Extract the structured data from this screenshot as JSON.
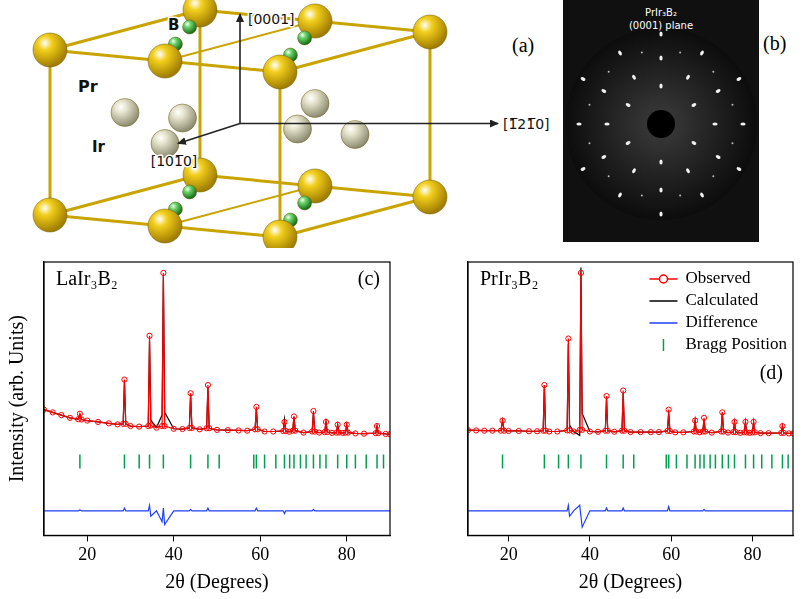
{
  "diagram": {
    "label": "(a)",
    "atoms": {
      "large": "Pr",
      "medium": "Ir",
      "small": "B"
    },
    "directions": {
      "vertical": "[0001]",
      "horizontal": "[1̅21̅0]",
      "depth": "[101̅0]"
    }
  },
  "laue_image": {
    "label": "(b)",
    "lines": [
      "PrIr₃B₂",
      "(0001) plane"
    ]
  },
  "chart_data": [
    {
      "type": "line",
      "title": "LaIr₃B₂",
      "label": "(c)",
      "x_label": "2θ (Degrees)",
      "y_label": "Intensity (arb. Units)",
      "xlim": [
        10,
        90
      ],
      "xticks": [
        20,
        40,
        60,
        80
      ],
      "ylim": [
        0,
        100
      ],
      "grid": false,
      "tick_labels": "x",
      "x": [
        10,
        12,
        14,
        16,
        17.9,
        18.3,
        18.7,
        20,
        22.5,
        25,
        27,
        28.3,
        28.6,
        28.9,
        30,
        32,
        34.1,
        34.4,
        34.7,
        36,
        37.3,
        37.6,
        37.9,
        40,
        42,
        43.6,
        43.9,
        44.2,
        46,
        47.6,
        47.9,
        48.2,
        50,
        52.5,
        55,
        57,
        58.8,
        59.1,
        59.4,
        61,
        63,
        65.3,
        65.6,
        65.9,
        66.7,
        67.5,
        67.8,
        68.1,
        70,
        72.0,
        72.3,
        72.6,
        73.6,
        74.9,
        75.2,
        75.5,
        76.6,
        77.6,
        77.9,
        78.2,
        79.1,
        79.7,
        80.0,
        80.3,
        82,
        84,
        86.7,
        87.0,
        87.3,
        89,
        90
      ],
      "series": [
        {
          "color": "#ff0000",
          "marker": "circle",
          "line_style": "solid",
          "values": [
            46,
            45,
            44,
            43,
            42.5,
            44.5,
            42.4,
            42,
            41.5,
            41,
            40.6,
            40.8,
            57,
            40.8,
            40,
            39.8,
            40,
            73,
            40.2,
            39.4,
            40,
            96,
            40,
            39,
            38.9,
            39.3,
            52,
            39.3,
            38.8,
            39.2,
            55,
            39.2,
            38.6,
            38.5,
            38.4,
            38.3,
            38.8,
            47,
            38.8,
            38,
            38,
            38.2,
            41.5,
            38.2,
            37.9,
            38.3,
            43.5,
            38.3,
            37.6,
            38,
            45.5,
            38,
            37.6,
            37.8,
            41.5,
            37.8,
            37.5,
            37.6,
            40.5,
            37.6,
            37.5,
            37.6,
            40.5,
            37.6,
            37.3,
            37.2,
            37.4,
            40,
            37.4,
            37.1,
            37
          ]
        },
        {
          "color": "#000000",
          "line_style": "solid",
          "values": [
            46,
            45,
            44,
            43,
            42.5,
            44.2,
            42.4,
            42,
            41.5,
            41,
            40.6,
            40.8,
            56,
            40.8,
            40,
            39.8,
            40,
            71,
            42.2,
            39.4,
            44,
            95,
            45,
            39,
            38.9,
            39.3,
            51.5,
            39.3,
            38.8,
            39.2,
            54,
            39.2,
            38.6,
            38.5,
            38.4,
            38.3,
            38.8,
            46,
            38.8,
            38,
            38,
            38.2,
            42.5,
            38.2,
            37.9,
            38.3,
            43.5,
            38.3,
            37.6,
            38,
            45,
            38,
            37.6,
            37.8,
            41.5,
            37.8,
            37.5,
            37.6,
            40.5,
            37.6,
            37.5,
            37.6,
            40.5,
            37.6,
            37.3,
            37.2,
            37.4,
            40,
            37.4,
            37.1,
            37
          ]
        },
        {
          "color": "#1f3fff",
          "line_style": "solid",
          "values": [
            9,
            9,
            9,
            9,
            9,
            9.3,
            9,
            9,
            9,
            9,
            9,
            9,
            10,
            9,
            9,
            9,
            9,
            11,
            7,
            9,
            5,
            10,
            4,
            9,
            9,
            9,
            9.5,
            9,
            9,
            9,
            10,
            9,
            9,
            9,
            9,
            9,
            9,
            10,
            9,
            9,
            9,
            9,
            8,
            9,
            9,
            9,
            9,
            9,
            9,
            9,
            9.5,
            9,
            9,
            9,
            9,
            9,
            9,
            9,
            9,
            9,
            9,
            9,
            9,
            9,
            9,
            9,
            9,
            9,
            9,
            9,
            9
          ]
        },
        {
          "color": "#00a050",
          "type": "scatter",
          "marker": "line",
          "x": [
            18.3,
            28.6,
            32.0,
            34.4,
            37.6,
            43.9,
            47.9,
            50.5,
            58.5,
            59.1,
            61.0,
            63.6,
            65.6,
            66.8,
            67.8,
            69.3,
            70.6,
            72.3,
            73.8,
            75.2,
            77.9,
            80.0,
            82.0,
            84.5,
            87.0,
            88.5
          ],
          "values": [
            27,
            27,
            27,
            27,
            27,
            27,
            27,
            27,
            27,
            27,
            27,
            27,
            27,
            27,
            27,
            27,
            27,
            27,
            27,
            27,
            27,
            27,
            27,
            27,
            27,
            27
          ]
        }
      ]
    },
    {
      "type": "line",
      "title": "PrIr₃B₂",
      "label": "(d)",
      "x_label": "2θ (Degrees)",
      "xlim": [
        10,
        90
      ],
      "xticks": [
        20,
        40,
        60,
        80
      ],
      "ylim": [
        0,
        100
      ],
      "grid": false,
      "tick_labels": "x",
      "legend": "top right",
      "x": [
        10,
        12,
        14,
        16,
        18.1,
        18.5,
        18.9,
        20,
        22.5,
        25,
        27,
        28.5,
        28.8,
        29.1,
        30,
        32,
        34.4,
        34.7,
        35.0,
        36,
        37.5,
        37.8,
        38.1,
        40,
        42,
        43.8,
        44.1,
        44.4,
        46,
        47.9,
        48.2,
        48.5,
        50,
        52.5,
        55,
        57,
        59.1,
        59.4,
        59.7,
        61,
        63,
        65.6,
        65.9,
        66.2,
        67,
        67.8,
        68.1,
        68.4,
        70,
        72.3,
        72.6,
        72.9,
        74,
        75.3,
        75.6,
        75.9,
        77,
        78.0,
        78.3,
        78.6,
        79.3,
        80.0,
        80.3,
        80.6,
        82,
        84,
        87.1,
        87.4,
        87.7,
        89,
        90
      ],
      "series": [
        {
          "name": "Observed",
          "color": "#ff0000",
          "marker": "circle",
          "line_style": "solid",
          "values": [
            38.5,
            38.4,
            38.3,
            38.3,
            38.3,
            42,
            38.3,
            38.2,
            38.2,
            38.1,
            38.1,
            38.3,
            55,
            38.3,
            38,
            38,
            38.4,
            72,
            38.4,
            38,
            38.6,
            96,
            38.6,
            38,
            37.9,
            38.3,
            51,
            38.3,
            37.9,
            38.3,
            53,
            38.3,
            37.8,
            37.8,
            37.8,
            37.8,
            38.2,
            46,
            38.2,
            37.7,
            37.7,
            38,
            42,
            38,
            37.7,
            38,
            43,
            38,
            37.6,
            38,
            45,
            38,
            37.6,
            37.8,
            41.5,
            37.8,
            37.5,
            37.7,
            41.5,
            37.7,
            37.5,
            37.7,
            41.5,
            37.7,
            37.4,
            37.4,
            37.5,
            40,
            37.5,
            37.3,
            37.3
          ]
        },
        {
          "name": "Calculated",
          "color": "#000000",
          "line_style": "solid",
          "values": [
            38.5,
            38.4,
            38.3,
            38.3,
            38.3,
            42,
            38.3,
            38.2,
            38.2,
            38.1,
            38.1,
            38.3,
            55,
            38.3,
            38,
            38,
            38.4,
            70,
            40.4,
            38,
            36.6,
            98,
            44.6,
            38,
            37.9,
            38.3,
            50,
            38.3,
            37.9,
            38.3,
            52,
            38.3,
            37.8,
            37.8,
            37.8,
            37.8,
            38.2,
            44.5,
            38.2,
            37.7,
            37.7,
            38,
            42,
            38,
            37.7,
            38,
            42.5,
            38,
            37.6,
            38,
            45,
            38,
            37.6,
            37.8,
            41.5,
            37.8,
            37.5,
            37.7,
            41.5,
            37.7,
            37.5,
            37.7,
            41.5,
            37.7,
            37.4,
            37.4,
            37.5,
            40,
            37.5,
            37.3,
            37.3
          ]
        },
        {
          "name": "Difference",
          "color": "#1f3fff",
          "line_style": "solid",
          "values": [
            9,
            9,
            9,
            9,
            9,
            9,
            9,
            9,
            9,
            9,
            9,
            9,
            9,
            9,
            9,
            9,
            9,
            11,
            7,
            9,
            11,
            7,
            3,
            9,
            9,
            9,
            10,
            9,
            9,
            9,
            10,
            9,
            9,
            9,
            9,
            9,
            9,
            10.5,
            9,
            9,
            9,
            9,
            9,
            9,
            9,
            9,
            9.5,
            9,
            9,
            9,
            9,
            9,
            9,
            9,
            9,
            9,
            9,
            9,
            9,
            9,
            9,
            9,
            9,
            9,
            9,
            9,
            9,
            9,
            9,
            9,
            9
          ]
        },
        {
          "name": "Bragg Position",
          "color": "#00a050",
          "type": "scatter",
          "marker": "line",
          "x": [
            18.5,
            28.8,
            32.3,
            34.7,
            37.8,
            44.1,
            48.2,
            50.8,
            58.8,
            59.4,
            61.3,
            63.9,
            65.9,
            67.1,
            68.1,
            69.6,
            70.9,
            72.6,
            74.1,
            75.6,
            78.3,
            80.3,
            82.3,
            84.8,
            87.4,
            88.8
          ],
          "values": [
            27,
            27,
            27,
            27,
            27,
            27,
            27,
            27,
            27,
            27,
            27,
            27,
            27,
            27,
            27,
            27,
            27,
            27,
            27,
            27,
            27,
            27,
            27,
            27,
            27,
            27
          ]
        }
      ]
    }
  ]
}
